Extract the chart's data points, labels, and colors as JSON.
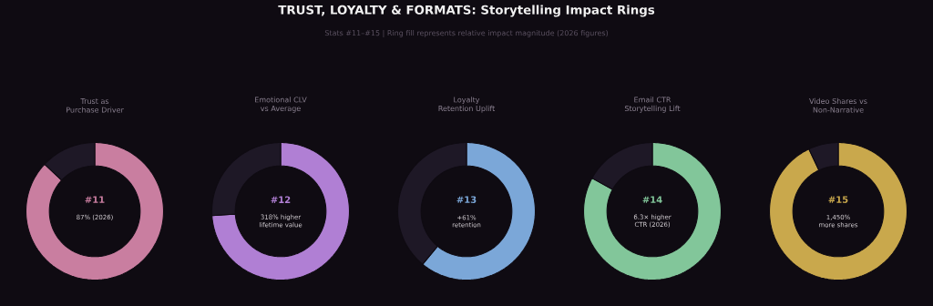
{
  "chart_data": [
    {
      "type": "other",
      "title": "TRUST, LOYALTY & FORMATS: Storytelling Impact Rings",
      "subtitle": "Stats #11–#15 | Ring fill represents relative impact magnitude (2026 figures)"
    },
    {
      "type": "donut",
      "title": "Trust as Purchase Driver",
      "categories": [
        null,
        null
      ],
      "values": [
        87,
        13
      ],
      "colors": [
        "#c97ea0",
        "#1e1826"
      ],
      "annotations": [
        "#11",
        "87% (2026)"
      ]
    },
    {
      "type": "donut",
      "title": "Emotional CLV vs Average",
      "categories": [
        null,
        null
      ],
      "values": [
        74,
        26
      ],
      "colors": [
        "#b07fd4",
        "#1e1826"
      ],
      "annotations": [
        "#12",
        "318% higher",
        "lifetime value"
      ]
    },
    {
      "type": "donut",
      "title": "Loyalty Retention Uplift",
      "categories": [
        null,
        null
      ],
      "values": [
        61,
        39
      ],
      "colors": [
        "#7ba7d8",
        "#1e1826"
      ],
      "annotations": [
        "#13",
        "+61%",
        "retention"
      ]
    },
    {
      "type": "donut",
      "title": "Email CTR Storytelling Lift",
      "categories": [
        null,
        null
      ],
      "values": [
        83,
        17
      ],
      "colors": [
        "#82c69a",
        "#1e1826"
      ],
      "annotations": [
        "#14",
        "6.3× higher",
        "CTR (2026)"
      ]
    },
    {
      "type": "donut",
      "title": "Video Shares vs Non-Narrative",
      "categories": [
        null,
        null
      ],
      "values": [
        93,
        7
      ],
      "colors": [
        "#c9a84c",
        "#1e1826"
      ],
      "annotations": [
        "#15",
        "1,450%",
        "more shares"
      ]
    }
  ]
}
